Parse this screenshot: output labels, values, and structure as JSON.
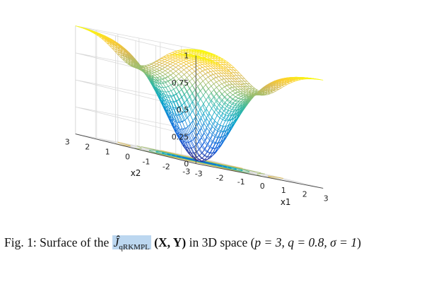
{
  "chart_data": {
    "type": "surface",
    "surface_function": "exp(-(x1^2+x2^2)/2) based kernel loss, min at origin, value 1 at corners",
    "x1": {
      "label": "x1",
      "range": [
        -3,
        3
      ],
      "ticks": [
        "-3",
        "-2",
        "-1",
        "0",
        "1",
        "2",
        "3"
      ]
    },
    "x2": {
      "label": "x2",
      "range": [
        -3,
        3
      ],
      "ticks": [
        "-3",
        "-2",
        "-1",
        "0",
        "1",
        "2",
        "3"
      ]
    },
    "z": {
      "label": "",
      "range": [
        0,
        1
      ],
      "ticks": [
        "0",
        "0.25",
        "0.5",
        "0.75",
        "1"
      ]
    },
    "minimum": {
      "x1": 0,
      "x2": 0,
      "z": 0
    },
    "colormap": "parula",
    "contours_on_floor": true,
    "grid": true
  },
  "caption": {
    "prefix": "Fig. 1: Surface of the ",
    "symbol_main": "Ĵ",
    "symbol_sub": "qRKMPL",
    "args": "(X, Y)",
    "middle": " in 3D space (",
    "params": "p = 3, q = 0.8, σ = 1",
    "suffix": ")"
  }
}
